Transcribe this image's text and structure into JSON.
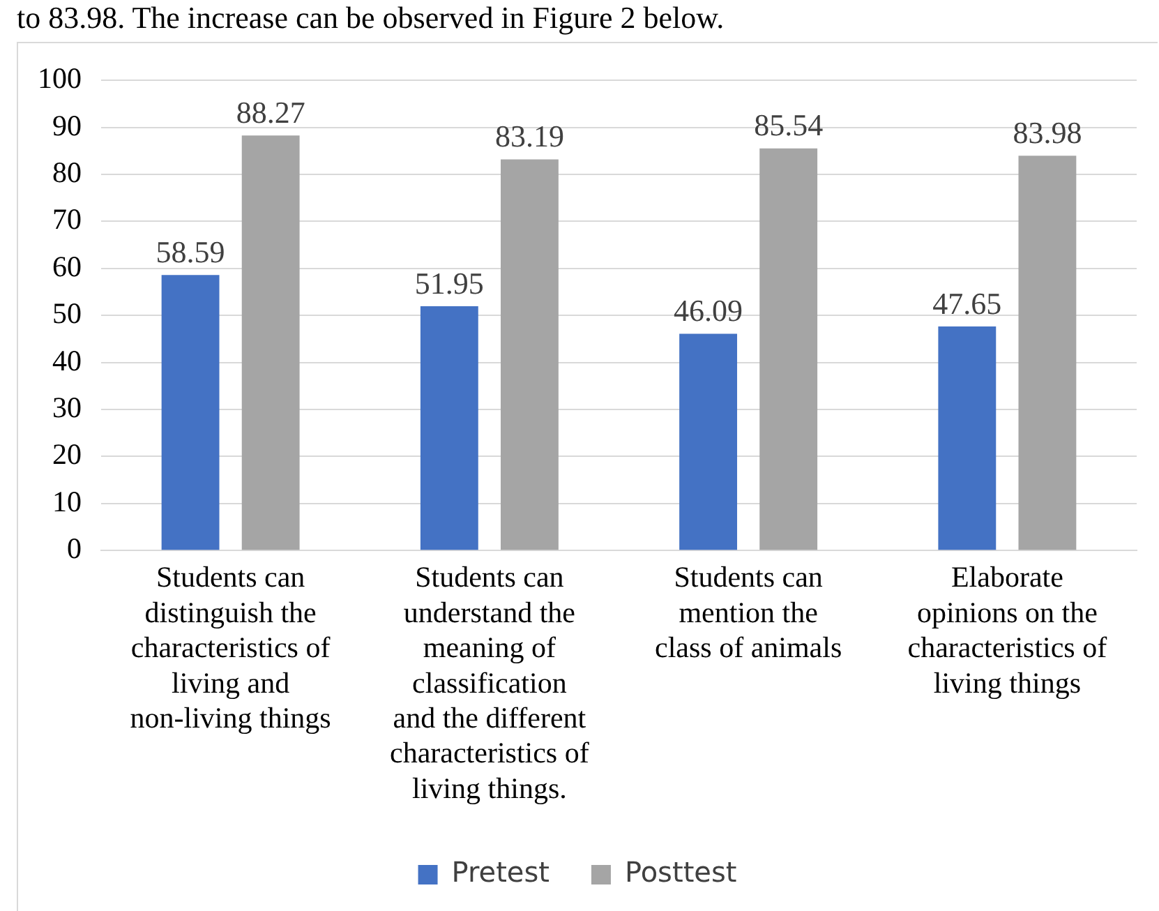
{
  "chart_data": {
    "type": "bar",
    "annotations": [
      "to 83.98. The increase can be observed in Figure 2 below."
    ],
    "categories": [
      "Students can distinguish the characteristics of living and non-living things",
      "Students can understand the meaning of classification and the different characteristics of living things.",
      "Students can mention the class of animals",
      "Elaborate opinions on the characteristics of living things"
    ],
    "series": [
      {
        "name": "Pretest",
        "color": "#4472c4",
        "values": [
          58.59,
          51.95,
          46.09,
          47.65
        ]
      },
      {
        "name": "Posttest",
        "color": "#a5a5a5",
        "values": [
          88.27,
          83.19,
          85.54,
          83.98
        ]
      }
    ],
    "ylim": [
      0,
      100
    ],
    "yticks": [
      0,
      10,
      20,
      30,
      40,
      50,
      60,
      70,
      80,
      90,
      100
    ],
    "grid": "y",
    "legend": "bottom",
    "data_labels": true
  }
}
